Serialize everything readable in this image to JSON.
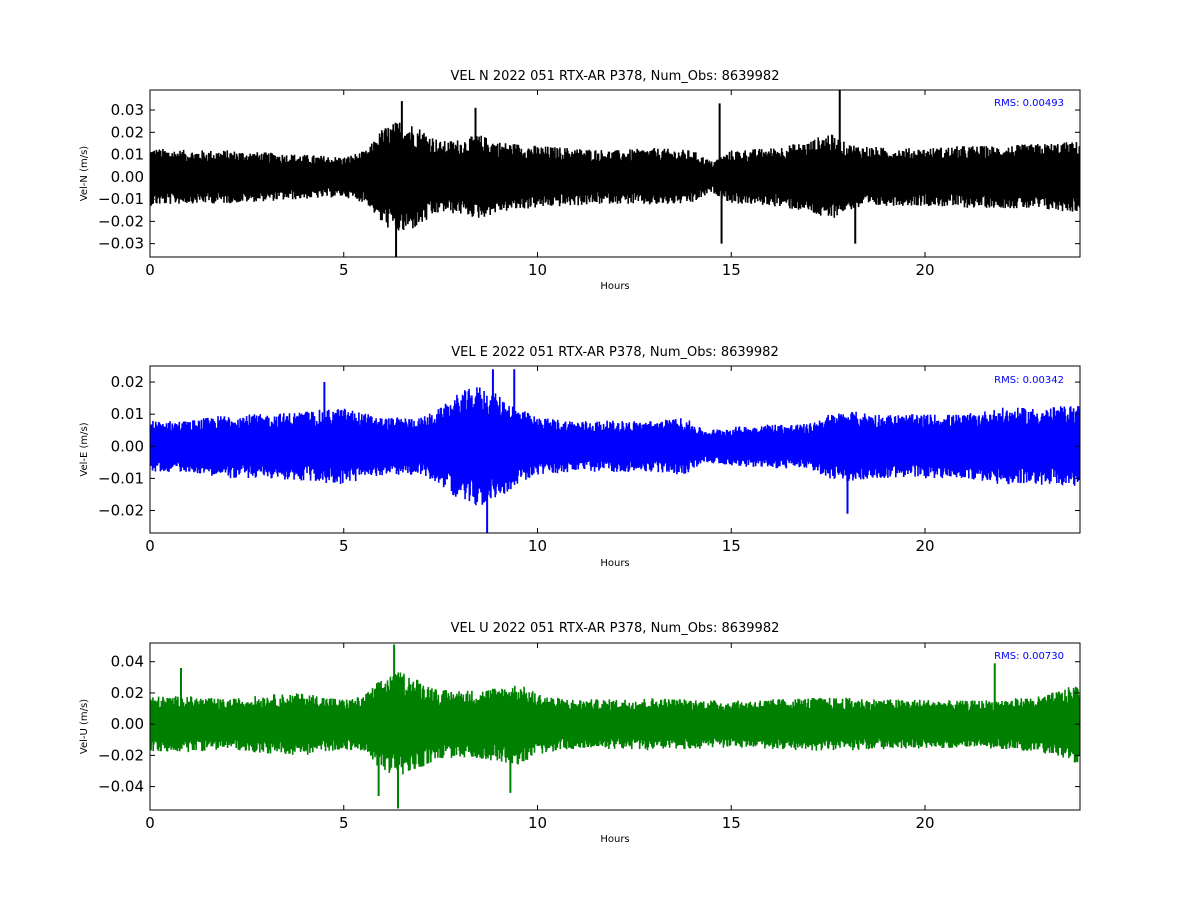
{
  "chart_data": [
    {
      "type": "line",
      "title": "VEL N 2022 051 RTX-AR  P378, Num_Obs: 8639982",
      "xlabel": "Hours",
      "ylabel": "Vel-N (m/s)",
      "xlim": [
        0,
        24
      ],
      "ylim": [
        -0.036,
        0.039
      ],
      "xticks": [
        0,
        5,
        10,
        15,
        20
      ],
      "yticks": [
        -0.03,
        -0.02,
        -0.01,
        0.0,
        0.01,
        0.02,
        0.03
      ],
      "ytick_labels": [
        "−0.03",
        "−0.02",
        "−0.01",
        "0.00",
        "0.01",
        "0.02",
        "0.03"
      ],
      "color": "#000000",
      "annotation": "RMS:  0.00493",
      "annotation_color": "#0000ff",
      "grid": false,
      "envelope": {
        "x": [
          0,
          1,
          2,
          3,
          4,
          5,
          5.6,
          6.0,
          6.5,
          7.0,
          7.5,
          8.0,
          8.5,
          9.0,
          10.0,
          11.0,
          12.0,
          13.0,
          14.0,
          14.5,
          15.0,
          16.0,
          17.0,
          17.5,
          18.0,
          19.0,
          20.0,
          21.0,
          22.0,
          23.0,
          24.0
        ],
        "upper": [
          0.013,
          0.012,
          0.012,
          0.011,
          0.01,
          0.009,
          0.012,
          0.022,
          0.026,
          0.022,
          0.016,
          0.017,
          0.019,
          0.016,
          0.014,
          0.013,
          0.012,
          0.013,
          0.012,
          0.007,
          0.012,
          0.013,
          0.016,
          0.02,
          0.015,
          0.013,
          0.013,
          0.014,
          0.014,
          0.015,
          0.016
        ],
        "lower": [
          -0.013,
          -0.012,
          -0.012,
          -0.011,
          -0.01,
          -0.009,
          -0.012,
          -0.022,
          -0.026,
          -0.022,
          -0.016,
          -0.017,
          -0.019,
          -0.016,
          -0.014,
          -0.013,
          -0.012,
          -0.013,
          -0.012,
          -0.007,
          -0.012,
          -0.013,
          -0.016,
          -0.02,
          -0.015,
          -0.013,
          -0.013,
          -0.014,
          -0.014,
          -0.015,
          -0.016
        ]
      },
      "spikes": [
        {
          "x": 6.35,
          "y": -0.036
        },
        {
          "x": 6.5,
          "y": 0.034
        },
        {
          "x": 8.4,
          "y": 0.031
        },
        {
          "x": 14.7,
          "y": 0.033
        },
        {
          "x": 14.75,
          "y": -0.03
        },
        {
          "x": 17.8,
          "y": 0.039
        },
        {
          "x": 18.2,
          "y": -0.03
        }
      ]
    },
    {
      "type": "line",
      "title": "VEL E 2022 051 RTX-AR  P378, Num_Obs: 8639982",
      "xlabel": "Hours",
      "ylabel": "Vel-E (m/s)",
      "xlim": [
        0,
        24
      ],
      "ylim": [
        -0.027,
        0.025
      ],
      "xticks": [
        0,
        5,
        10,
        15,
        20
      ],
      "yticks": [
        -0.02,
        -0.01,
        0.0,
        0.01,
        0.02
      ],
      "ytick_labels": [
        "−0.02",
        "−0.01",
        "0.00",
        "0.01",
        "0.02"
      ],
      "color": "#0000ff",
      "annotation": "RMS:  0.00342",
      "annotation_color": "#0000ff",
      "grid": false,
      "envelope": {
        "x": [
          0,
          1,
          2,
          3,
          4,
          5,
          6,
          7,
          7.5,
          8,
          8.5,
          9,
          9.5,
          10,
          11,
          12,
          13,
          13.8,
          14.3,
          15,
          16,
          17,
          17.5,
          18,
          19,
          20,
          21,
          22,
          23,
          24
        ],
        "upper": [
          0.008,
          0.008,
          0.01,
          0.01,
          0.011,
          0.012,
          0.009,
          0.009,
          0.012,
          0.017,
          0.019,
          0.016,
          0.012,
          0.009,
          0.008,
          0.008,
          0.008,
          0.009,
          0.005,
          0.006,
          0.007,
          0.007,
          0.01,
          0.011,
          0.01,
          0.01,
          0.01,
          0.012,
          0.012,
          0.013
        ],
        "lower": [
          -0.008,
          -0.008,
          -0.01,
          -0.01,
          -0.011,
          -0.012,
          -0.009,
          -0.009,
          -0.012,
          -0.017,
          -0.019,
          -0.016,
          -0.012,
          -0.009,
          -0.008,
          -0.008,
          -0.008,
          -0.009,
          -0.005,
          -0.006,
          -0.007,
          -0.007,
          -0.01,
          -0.011,
          -0.01,
          -0.01,
          -0.01,
          -0.012,
          -0.012,
          -0.013
        ]
      },
      "spikes": [
        {
          "x": 8.7,
          "y": -0.027
        },
        {
          "x": 8.85,
          "y": 0.024
        },
        {
          "x": 9.4,
          "y": 0.024
        },
        {
          "x": 18.0,
          "y": -0.021
        },
        {
          "x": 4.5,
          "y": 0.02
        }
      ]
    },
    {
      "type": "line",
      "title": "VEL U 2022 051 RTX-AR  P378, Num_Obs: 8639982",
      "xlabel": "Hours",
      "ylabel": "Vel-U (m/s)",
      "xlim": [
        0,
        24
      ],
      "ylim": [
        -0.055,
        0.052
      ],
      "xticks": [
        0,
        5,
        10,
        15,
        20
      ],
      "yticks": [
        -0.04,
        -0.02,
        0.0,
        0.02,
        0.04
      ],
      "ytick_labels": [
        "−0.04",
        "−0.02",
        "0.00",
        "0.02",
        "0.04"
      ],
      "color": "#008000",
      "annotation": "RMS:  0.00730",
      "annotation_color": "#0000ff",
      "grid": false,
      "envelope": {
        "x": [
          0,
          1,
          2,
          3,
          4,
          5,
          5.5,
          6,
          6.5,
          7,
          7.5,
          8,
          8.5,
          9,
          9.5,
          10,
          10.5,
          11,
          12,
          13,
          14,
          15,
          16,
          17,
          18,
          19,
          20,
          21,
          22,
          23,
          23.5,
          24
        ],
        "upper": [
          0.018,
          0.018,
          0.016,
          0.019,
          0.02,
          0.016,
          0.018,
          0.03,
          0.034,
          0.028,
          0.022,
          0.022,
          0.022,
          0.024,
          0.026,
          0.02,
          0.017,
          0.016,
          0.016,
          0.017,
          0.016,
          0.015,
          0.016,
          0.017,
          0.017,
          0.016,
          0.016,
          0.015,
          0.016,
          0.018,
          0.022,
          0.026
        ],
        "lower": [
          -0.018,
          -0.018,
          -0.016,
          -0.019,
          -0.02,
          -0.016,
          -0.018,
          -0.03,
          -0.034,
          -0.028,
          -0.022,
          -0.022,
          -0.022,
          -0.024,
          -0.026,
          -0.02,
          -0.017,
          -0.016,
          -0.016,
          -0.017,
          -0.016,
          -0.015,
          -0.016,
          -0.017,
          -0.017,
          -0.016,
          -0.016,
          -0.015,
          -0.016,
          -0.018,
          -0.022,
          -0.026
        ]
      },
      "spikes": [
        {
          "x": 6.3,
          "y": 0.051
        },
        {
          "x": 6.4,
          "y": -0.054
        },
        {
          "x": 5.9,
          "y": -0.046
        },
        {
          "x": 9.3,
          "y": -0.044
        },
        {
          "x": 21.8,
          "y": 0.039
        },
        {
          "x": 0.8,
          "y": 0.036
        }
      ]
    }
  ]
}
